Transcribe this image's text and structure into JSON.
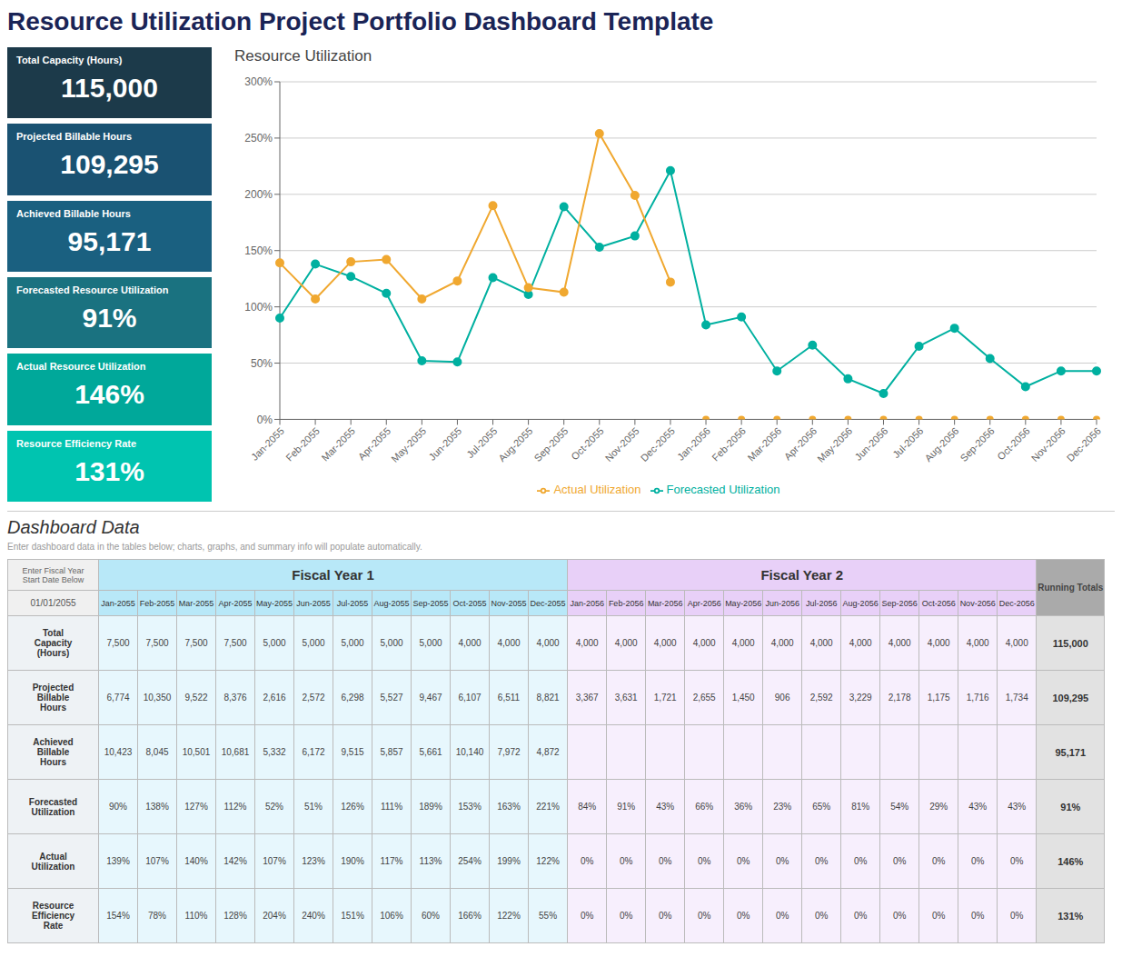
{
  "title": "Resource Utilization Project Portfolio Dashboard Template",
  "chart_data": [
    {
      "type": "kpi",
      "categories": [
        "Total Capacity (Hours)",
        "Projected Billable Hours",
        "Achieved Billable Hours",
        "Forecasted Resource Utilization",
        "Actual Resource Utilization",
        "Resource Efficiency Rate"
      ],
      "values": [
        115000,
        109295,
        95171,
        91,
        146,
        131
      ],
      "value_labels": [
        "115,000",
        "109,295",
        "95,171",
        "91%",
        "146%",
        "131%"
      ],
      "colors": [
        "#1c3a4a",
        "#1a5272",
        "#1a6080",
        "#1a7280",
        "#00a89a",
        "#00c4b0"
      ]
    },
    {
      "type": "line",
      "title": "Resource Utilization",
      "categories": [
        "Jan-2055",
        "Feb-2055",
        "Mar-2055",
        "Apr-2055",
        "May-2055",
        "Jun-2055",
        "Jul-2055",
        "Aug-2055",
        "Sep-2055",
        "Oct-2055",
        "Nov-2055",
        "Dec-2055",
        "Jan-2056",
        "Feb-2056",
        "Mar-2056",
        "Apr-2056",
        "May-2056",
        "Jun-2056",
        "Jul-2056",
        "Aug-2056",
        "Sep-2056",
        "Oct-2056",
        "Nov-2056",
        "Dec-2056"
      ],
      "series": [
        {
          "name": "Forecasted Utilization",
          "color": "#00b0a0",
          "marker": "circle",
          "values": [
            0.9,
            1.38,
            1.27,
            1.12,
            0.52,
            0.51,
            1.26,
            1.11,
            1.89,
            1.53,
            1.63,
            2.21,
            0.84,
            0.91,
            0.43,
            0.66,
            0.36,
            0.23,
            0.65,
            0.81,
            0.54,
            0.29,
            0.43,
            0.43
          ]
        },
        {
          "name": "Actual Utilization",
          "color": "#f0a830",
          "marker": "circle",
          "values": [
            1.39,
            1.07,
            1.4,
            1.42,
            1.07,
            1.23,
            1.9,
            1.17,
            1.13,
            2.54,
            1.99,
            1.22,
            null,
            null,
            null,
            null,
            null,
            null,
            null,
            null,
            null,
            null,
            null,
            null
          ]
        },
        {
          "type": "scatter",
          "color": "#f0a830",
          "marker": "circle",
          "values": [
            null,
            null,
            null,
            null,
            null,
            null,
            null,
            null,
            null,
            null,
            null,
            null,
            0.0,
            0.0,
            0.0,
            0.0,
            0.0,
            0.0,
            0.0,
            0.0,
            0.0,
            0.0,
            0.0,
            0.0
          ]
        }
      ],
      "ylim": [
        0,
        3.0
      ],
      "yticks": [
        {
          "value": 0,
          "label": "0%"
        },
        {
          "value": 0.5,
          "label": "50%"
        },
        {
          "value": 1.0,
          "label": "100%"
        },
        {
          "value": 1.5,
          "label": "150%"
        },
        {
          "value": 2.0,
          "label": "200%"
        },
        {
          "value": 2.5,
          "label": "250%"
        },
        {
          "value": 3.0,
          "label": "300%"
        }
      ],
      "grid": true,
      "legend": "bottom"
    },
    {
      "type": "table",
      "title": "Dashboard Data",
      "subtitle": "Enter dashboard data in the tables below; charts, graphs, and summary info will populate automatically.",
      "annotations": [
        "Enter Fiscal Year\nStart Date Below",
        "01/01/2055",
        "Fiscal Year 1",
        "Fiscal Year 2"
      ],
      "colors": [
        "#b8e8f8",
        "#e8d0f8"
      ],
      "categories": [
        "Jan-2055",
        "Feb-2055",
        "Mar-2055",
        "Apr-2055",
        "May-2055",
        "Jun-2055",
        "Jul-2055",
        "Aug-2055",
        "Sep-2055",
        "Oct-2055",
        "Nov-2055",
        "Dec-2055",
        "Jan-2056",
        "Feb-2056",
        "Mar-2056",
        "Apr-2056",
        "May-2056",
        "Jun-2056",
        "Jul-2056",
        "Aug-2056",
        "Sep-2056",
        "Oct-2056",
        "Nov-2056",
        "Dec-2056",
        "Running Totals"
      ],
      "series": [
        {
          "name": "Total\nCapacity\n(Hours)",
          "values": [
            7500,
            7500,
            7500,
            7500,
            5000,
            5000,
            5000,
            5000,
            5000,
            4000,
            4000,
            4000,
            4000,
            4000,
            4000,
            4000,
            4000,
            4000,
            4000,
            4000,
            4000,
            4000,
            4000,
            4000,
            115000
          ],
          "value_labels": [
            "7,500",
            "7,500",
            "7,500",
            "7,500",
            "5,000",
            "5,000",
            "5,000",
            "5,000",
            "5,000",
            "4,000",
            "4,000",
            "4,000",
            "4,000",
            "4,000",
            "4,000",
            "4,000",
            "4,000",
            "4,000",
            "4,000",
            "4,000",
            "4,000",
            "4,000",
            "4,000",
            "4,000",
            "115,000"
          ]
        },
        {
          "name": "Projected\nBillable\nHours",
          "values": [
            6774,
            10350,
            9522,
            8376,
            2616,
            2572,
            6298,
            5527,
            9467,
            6107,
            6511,
            8821,
            3367,
            3631,
            1721,
            2655,
            1450,
            906,
            2592,
            3229,
            2178,
            1175,
            1716,
            1734,
            109295
          ],
          "value_labels": [
            "6,774",
            "10,350",
            "9,522",
            "8,376",
            "2,616",
            "2,572",
            "6,298",
            "5,527",
            "9,467",
            "6,107",
            "6,511",
            "8,821",
            "3,367",
            "3,631",
            "1,721",
            "2,655",
            "1,450",
            "906",
            "2,592",
            "3,229",
            "2,178",
            "1,175",
            "1,716",
            "1,734",
            "109,295"
          ]
        },
        {
          "name": "Achieved\nBillable\nHours",
          "values": [
            10423,
            8045,
            10501,
            10681,
            5332,
            6172,
            9515,
            5857,
            5661,
            10140,
            7972,
            4872,
            null,
            null,
            null,
            null,
            null,
            null,
            null,
            null,
            null,
            null,
            null,
            null,
            95171
          ],
          "value_labels": [
            "10,423",
            "8,045",
            "10,501",
            "10,681",
            "5,332",
            "6,172",
            "9,515",
            "5,857",
            "5,661",
            "10,140",
            "7,972",
            "4,872",
            null,
            null,
            null,
            null,
            null,
            null,
            null,
            null,
            null,
            null,
            null,
            null,
            "95,171"
          ]
        },
        {
          "name": "Forecasted\nUtilization",
          "values": [
            90,
            138,
            127,
            112,
            52,
            51,
            126,
            111,
            189,
            153,
            163,
            221,
            84,
            91,
            43,
            66,
            36,
            23,
            65,
            81,
            54,
            29,
            43,
            43,
            91
          ],
          "value_labels": [
            "90%",
            "138%",
            "127%",
            "112%",
            "52%",
            "51%",
            "126%",
            "111%",
            "189%",
            "153%",
            "163%",
            "221%",
            "84%",
            "91%",
            "43%",
            "66%",
            "36%",
            "23%",
            "65%",
            "81%",
            "54%",
            "29%",
            "43%",
            "43%",
            "91%"
          ]
        },
        {
          "name": "Actual\nUtilization",
          "values": [
            139,
            107,
            140,
            142,
            107,
            123,
            190,
            117,
            113,
            254,
            199,
            122,
            0,
            0,
            0,
            0,
            0,
            0,
            0,
            0,
            0,
            0,
            0,
            0,
            146
          ],
          "value_labels": [
            "139%",
            "107%",
            "140%",
            "142%",
            "107%",
            "123%",
            "190%",
            "117%",
            "113%",
            "254%",
            "199%",
            "122%",
            "0%",
            "0%",
            "0%",
            "0%",
            "0%",
            "0%",
            "0%",
            "0%",
            "0%",
            "0%",
            "0%",
            "0%",
            "146%"
          ]
        },
        {
          "name": "Resource\nEfficiency\nRate",
          "values": [
            154,
            78,
            110,
            128,
            204,
            240,
            151,
            106,
            60,
            166,
            122,
            55,
            0,
            0,
            0,
            0,
            0,
            0,
            0,
            0,
            0,
            0,
            0,
            0,
            131
          ],
          "value_labels": [
            "154%",
            "78%",
            "110%",
            "128%",
            "204%",
            "240%",
            "151%",
            "106%",
            "60%",
            "166%",
            "122%",
            "55%",
            "0%",
            "0%",
            "0%",
            "0%",
            "0%",
            "0%",
            "0%",
            "0%",
            "0%",
            "0%",
            "0%",
            "0%",
            "131%"
          ]
        }
      ]
    }
  ]
}
